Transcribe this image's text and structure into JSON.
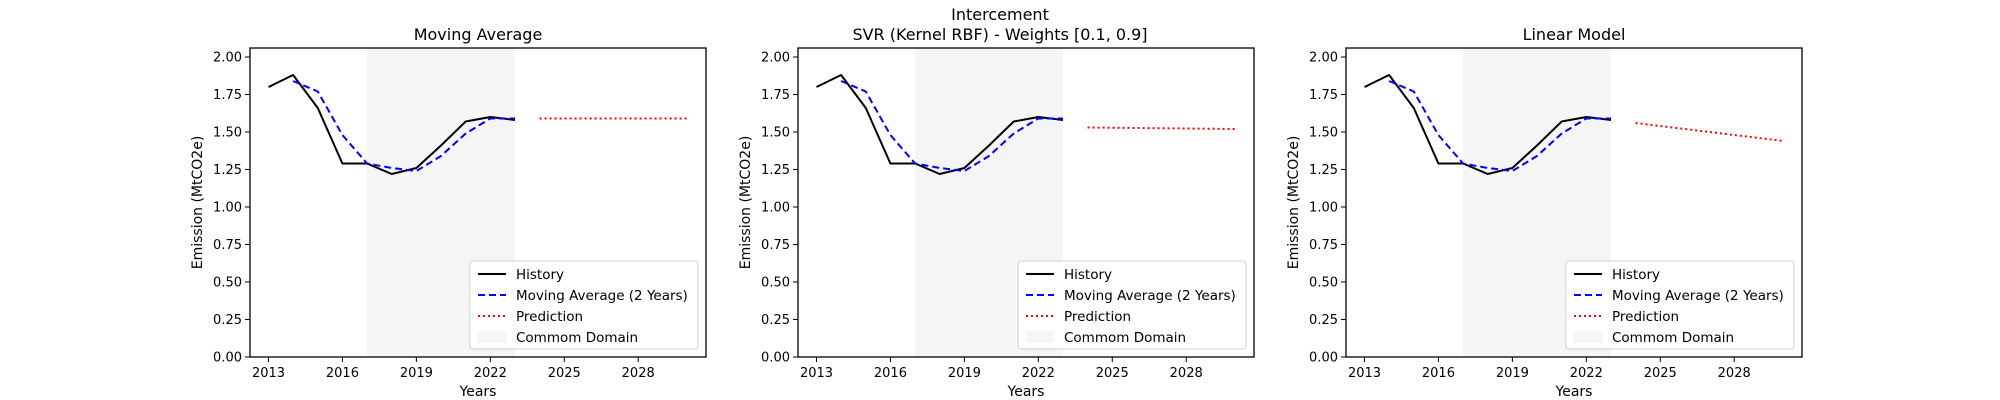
{
  "figure": {
    "suptitle_line1": "Intercement",
    "suptitle_line2": "SVR (Kernel RBF) - Weights [0.1, 0.9]"
  },
  "legend_labels": {
    "history": "History",
    "moving_average": "Moving Average (2 Years)",
    "prediction": "Prediction",
    "common_domain": "Commom Domain"
  },
  "colors": {
    "history": "#000000",
    "moving_average": "#0000ff",
    "prediction": "#ff0000",
    "common_domain": "#f5f5f5"
  },
  "chart_data": [
    {
      "type": "line",
      "title": "Moving Average",
      "xlabel": "Years",
      "ylabel": "Emission (MtCO2e)",
      "xlim": [
        2012.25,
        2030.75
      ],
      "ylim": [
        0,
        2.06
      ],
      "xticks": [
        2013,
        2016,
        2019,
        2022,
        2025,
        2028
      ],
      "yticks": [
        0.0,
        0.25,
        0.5,
        0.75,
        1.0,
        1.25,
        1.5,
        1.75,
        2.0
      ],
      "ytick_labels": [
        "0.00",
        "0.25",
        "0.50",
        "0.75",
        "1.00",
        "1.25",
        "1.50",
        "1.75",
        "2.00"
      ],
      "legend_position": "lower right",
      "grid": false,
      "common_domain": [
        2017,
        2023
      ],
      "series": [
        {
          "key": "history",
          "name": "History",
          "x": [
            2013,
            2014,
            2015,
            2016,
            2017,
            2018,
            2019,
            2020,
            2021,
            2022,
            2023
          ],
          "y": [
            1.8,
            1.88,
            1.66,
            1.29,
            1.29,
            1.22,
            1.26,
            1.41,
            1.57,
            1.6,
            1.58
          ]
        },
        {
          "key": "moving_average",
          "name": "Moving Average (2 Years)",
          "x": [
            2014,
            2015,
            2016,
            2017,
            2018,
            2019,
            2020,
            2021,
            2022,
            2023
          ],
          "y": [
            1.84,
            1.77,
            1.48,
            1.29,
            1.26,
            1.24,
            1.34,
            1.49,
            1.59,
            1.59
          ]
        },
        {
          "key": "prediction",
          "name": "Prediction",
          "x": [
            2024,
            2030
          ],
          "y": [
            1.59,
            1.59
          ]
        }
      ]
    },
    {
      "type": "line",
      "title": "",
      "xlabel": "Years",
      "ylabel": "Emission (MtCO2e)",
      "xlim": [
        2012.25,
        2030.75
      ],
      "ylim": [
        0,
        2.06
      ],
      "xticks": [
        2013,
        2016,
        2019,
        2022,
        2025,
        2028
      ],
      "yticks": [
        0.0,
        0.25,
        0.5,
        0.75,
        1.0,
        1.25,
        1.5,
        1.75,
        2.0
      ],
      "ytick_labels": [
        "0.00",
        "0.25",
        "0.50",
        "0.75",
        "1.00",
        "1.25",
        "1.50",
        "1.75",
        "2.00"
      ],
      "legend_position": "lower right",
      "grid": false,
      "common_domain": [
        2017,
        2023
      ],
      "series": [
        {
          "key": "history",
          "name": "History",
          "x": [
            2013,
            2014,
            2015,
            2016,
            2017,
            2018,
            2019,
            2020,
            2021,
            2022,
            2023
          ],
          "y": [
            1.8,
            1.88,
            1.66,
            1.29,
            1.29,
            1.22,
            1.26,
            1.41,
            1.57,
            1.6,
            1.58
          ]
        },
        {
          "key": "moving_average",
          "name": "Moving Average (2 Years)",
          "x": [
            2014,
            2015,
            2016,
            2017,
            2018,
            2019,
            2020,
            2021,
            2022,
            2023
          ],
          "y": [
            1.84,
            1.77,
            1.48,
            1.29,
            1.26,
            1.24,
            1.34,
            1.49,
            1.59,
            1.59
          ]
        },
        {
          "key": "prediction",
          "name": "Prediction",
          "x": [
            2024,
            2030
          ],
          "y": [
            1.53,
            1.52
          ]
        }
      ]
    },
    {
      "type": "line",
      "title": "Linear Model",
      "xlabel": "Years",
      "ylabel": "Emission (MtCO2e)",
      "xlim": [
        2012.25,
        2030.75
      ],
      "ylim": [
        0,
        2.06
      ],
      "xticks": [
        2013,
        2016,
        2019,
        2022,
        2025,
        2028
      ],
      "yticks": [
        0.0,
        0.25,
        0.5,
        0.75,
        1.0,
        1.25,
        1.5,
        1.75,
        2.0
      ],
      "ytick_labels": [
        "0.00",
        "0.25",
        "0.50",
        "0.75",
        "1.00",
        "1.25",
        "1.50",
        "1.75",
        "2.00"
      ],
      "legend_position": "lower right",
      "grid": false,
      "common_domain": [
        2017,
        2023
      ],
      "series": [
        {
          "key": "history",
          "name": "History",
          "x": [
            2013,
            2014,
            2015,
            2016,
            2017,
            2018,
            2019,
            2020,
            2021,
            2022,
            2023
          ],
          "y": [
            1.8,
            1.88,
            1.66,
            1.29,
            1.29,
            1.22,
            1.26,
            1.41,
            1.57,
            1.6,
            1.58
          ]
        },
        {
          "key": "moving_average",
          "name": "Moving Average (2 Years)",
          "x": [
            2014,
            2015,
            2016,
            2017,
            2018,
            2019,
            2020,
            2021,
            2022,
            2023
          ],
          "y": [
            1.84,
            1.77,
            1.48,
            1.29,
            1.26,
            1.24,
            1.34,
            1.49,
            1.59,
            1.59
          ]
        },
        {
          "key": "prediction",
          "name": "Prediction",
          "x": [
            2024,
            2030
          ],
          "y": [
            1.56,
            1.44
          ]
        }
      ]
    }
  ]
}
